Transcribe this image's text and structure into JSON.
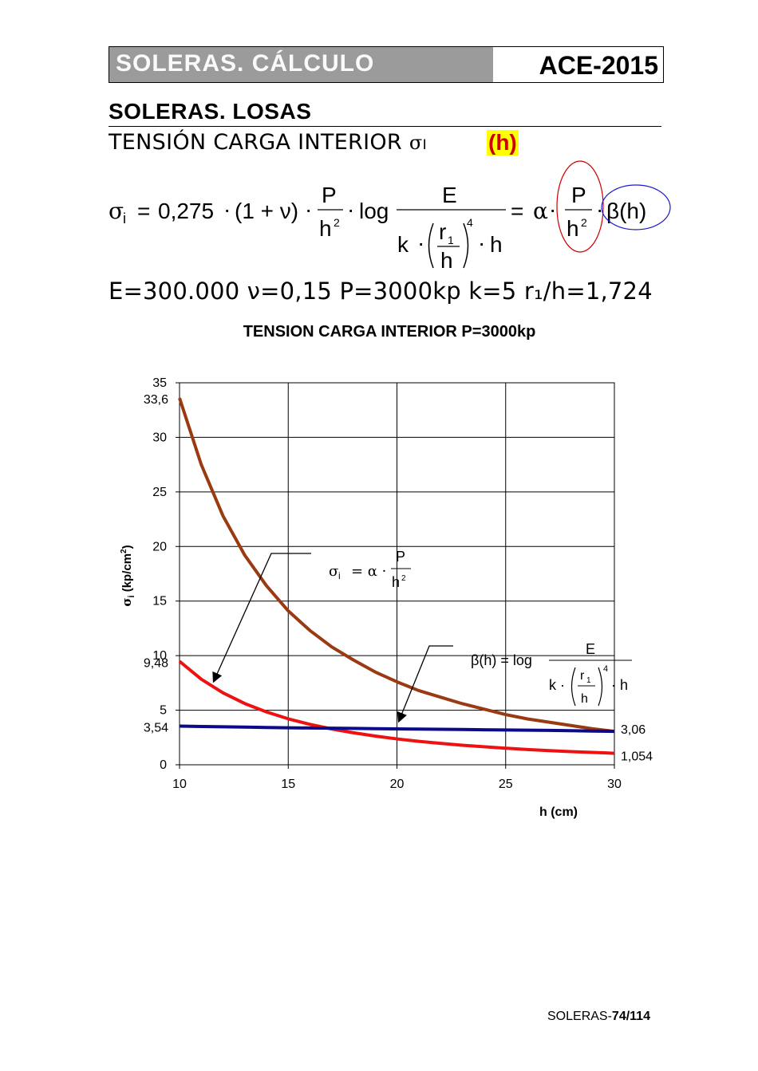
{
  "header": {
    "left_title": "SOLERAS.  CÁLCULO",
    "right_title": "ACE-2015"
  },
  "section": {
    "title": "SOLERAS. LOSAS",
    "subtitle": "TENSIÓN CARGA INTERIOR",
    "subtitle_symbol": "σ",
    "subtitle_subscript": "I",
    "badge": "(h)"
  },
  "formula": {
    "lhs": "σ",
    "lhs_sub": "i",
    "equals": "=",
    "coef": "0,275",
    "dot": "·",
    "paren_term": "(1 + ν)",
    "P": "P",
    "h": "h",
    "sq": "2",
    "log": "log",
    "E": "E",
    "k": "k",
    "r": "r",
    "r_sub": "1",
    "pow4": "4",
    "alpha": "α",
    "beta_h": "β(h)"
  },
  "params": "E=300.000  ν=0,15  P=3000kp k=5  r₁/h=1,724",
  "footer": {
    "prefix": "SOLERAS-",
    "page": "74/114"
  },
  "colors": {
    "brown": "#9a3a12",
    "red": "#ee1111",
    "blue": "#0a0a8a",
    "oval_red": "#cc0000",
    "oval_blue": "#1a1acc",
    "header_gray": "#9b9b9b"
  },
  "chart_data": {
    "type": "line",
    "title": "TENSION CARGA INTERIOR P=3000kp",
    "xlabel": "h (cm)",
    "ylabel": "σi (kp/cm²)",
    "ylabel_main": "σ",
    "ylabel_sub": "i",
    "ylabel_unit": " (kp/cm",
    "ylabel_sup": "2",
    "ylabel_close": ")",
    "xlim": [
      10,
      30
    ],
    "ylim": [
      0,
      35
    ],
    "xticks": [
      10,
      15,
      20,
      25,
      30
    ],
    "yticks": [
      0,
      5,
      10,
      15,
      20,
      25,
      30,
      35
    ],
    "grid": true,
    "x": [
      10,
      11,
      12,
      13,
      14,
      15,
      16,
      17,
      18,
      19,
      20,
      21,
      22,
      23,
      24,
      25,
      26,
      27,
      28,
      29,
      30
    ],
    "series": [
      {
        "color": "#9a3a12",
        "values": [
          33.6,
          27.5,
          22.8,
          19.2,
          16.4,
          14.1,
          12.3,
          10.8,
          9.6,
          8.5,
          7.6,
          6.8,
          6.2,
          5.6,
          5.1,
          4.6,
          4.2,
          3.9,
          3.6,
          3.3,
          3.06
        ]
      },
      {
        "color": "#ee1111",
        "values": [
          9.48,
          7.84,
          6.59,
          5.61,
          4.84,
          4.21,
          3.7,
          3.28,
          2.93,
          2.63,
          2.37,
          2.15,
          1.96,
          1.79,
          1.65,
          1.52,
          1.4,
          1.3,
          1.21,
          1.13,
          1.054
        ]
      },
      {
        "color": "#0a0a8a",
        "values": [
          3.54,
          3.51,
          3.48,
          3.45,
          3.42,
          3.39,
          3.37,
          3.35,
          3.33,
          3.31,
          3.29,
          3.27,
          3.25,
          3.23,
          3.21,
          3.19,
          3.17,
          3.15,
          3.12,
          3.09,
          3.06
        ]
      }
    ],
    "extra_ylabels": [
      "33,6",
      "9,48",
      "3,54"
    ],
    "extra_ylabel_values": [
      33.6,
      9.48,
      3.54
    ],
    "end_labels": [
      "3,06",
      "1,054"
    ],
    "end_label_values": [
      3.06,
      1.054
    ],
    "annotation1": {
      "lhs": "σ",
      "lhs_sub": "i",
      "rhs": "= α ·",
      "num": "P",
      "den": "h",
      "den_sup": "2"
    },
    "annotation2": {
      "lhs": "β(h) = log",
      "num": "E",
      "k": "k ·",
      "r": "r",
      "r_sub": "1",
      "h": "h",
      "pow": "4",
      "tail": "· h"
    }
  }
}
